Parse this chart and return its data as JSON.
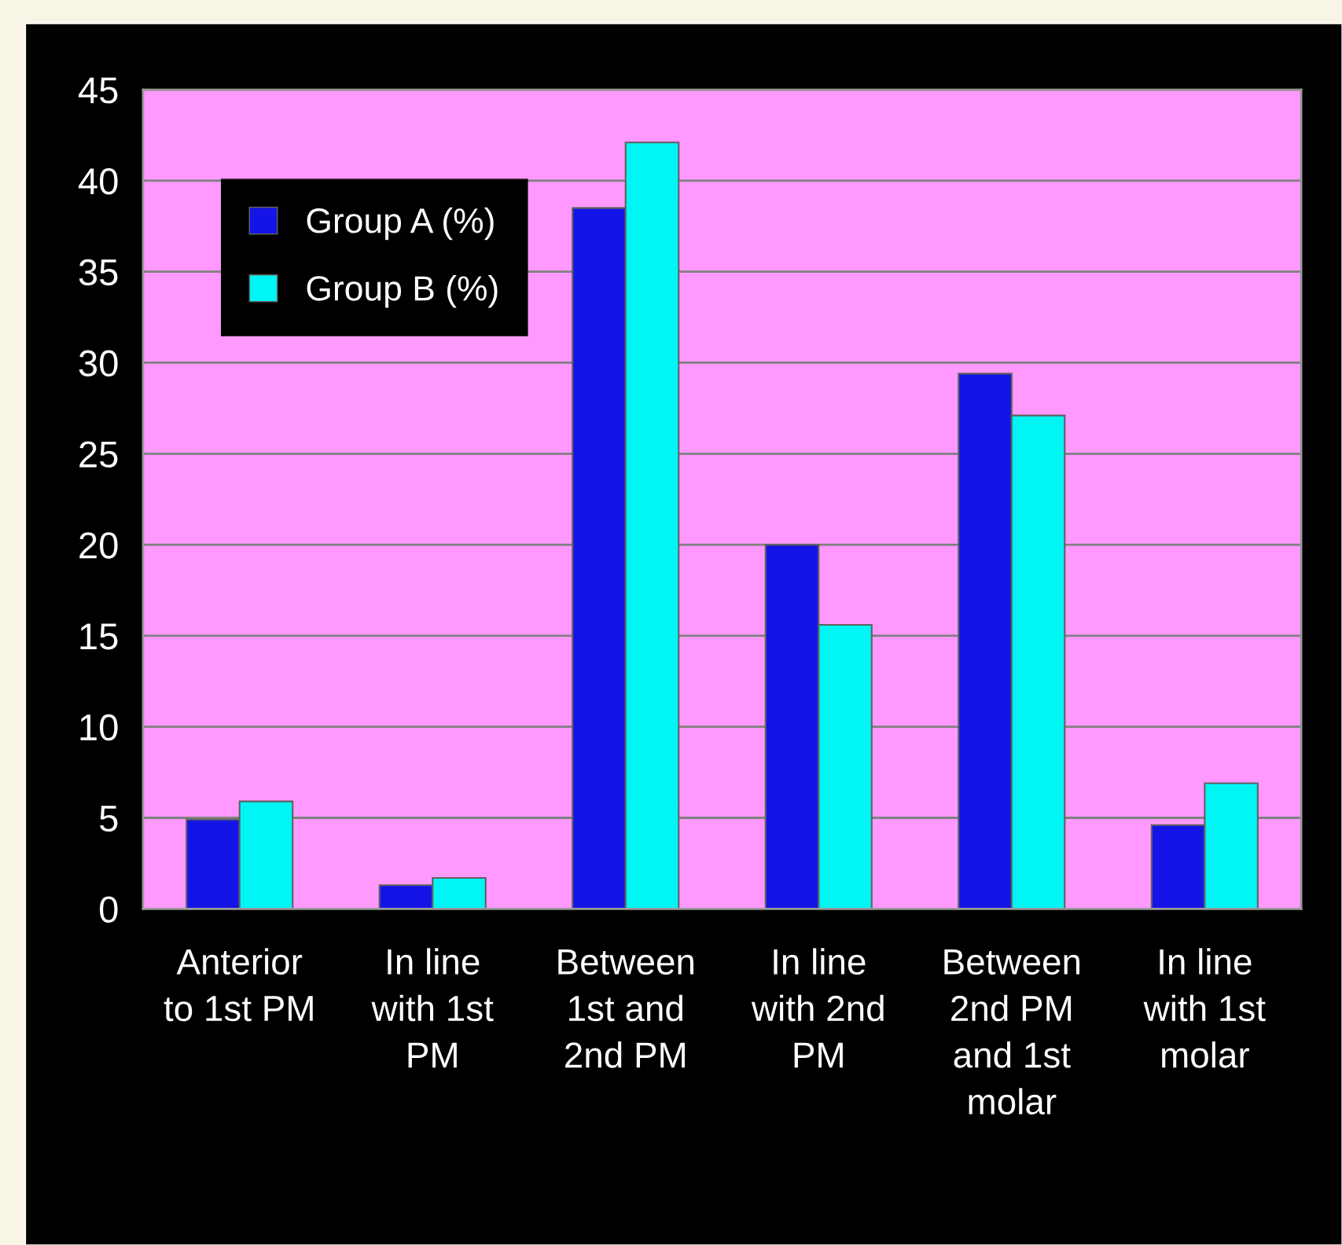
{
  "chart_data": {
    "type": "bar",
    "categories": [
      "Anterior\nto 1st PM",
      "In line\nwith 1st\nPM",
      "Between\n1st and\n2nd PM",
      "In line\nwith 2nd\nPM",
      "Between\n2nd PM\nand 1st\nmolar",
      "In line\nwith 1st\nmolar"
    ],
    "series": [
      {
        "name": "Group A (%)",
        "color": "#1414e6",
        "values": [
          4.9,
          1.3,
          38.5,
          20.0,
          29.4,
          4.6
        ]
      },
      {
        "name": "Group B (%)",
        "color": "#00f5f5",
        "values": [
          5.9,
          1.7,
          42.1,
          15.6,
          27.1,
          6.9
        ]
      }
    ],
    "ylim": [
      0,
      45
    ],
    "yticks": [
      0,
      5,
      10,
      15,
      20,
      25,
      30,
      35,
      40,
      45
    ],
    "grid": "y",
    "legend": "top left"
  }
}
